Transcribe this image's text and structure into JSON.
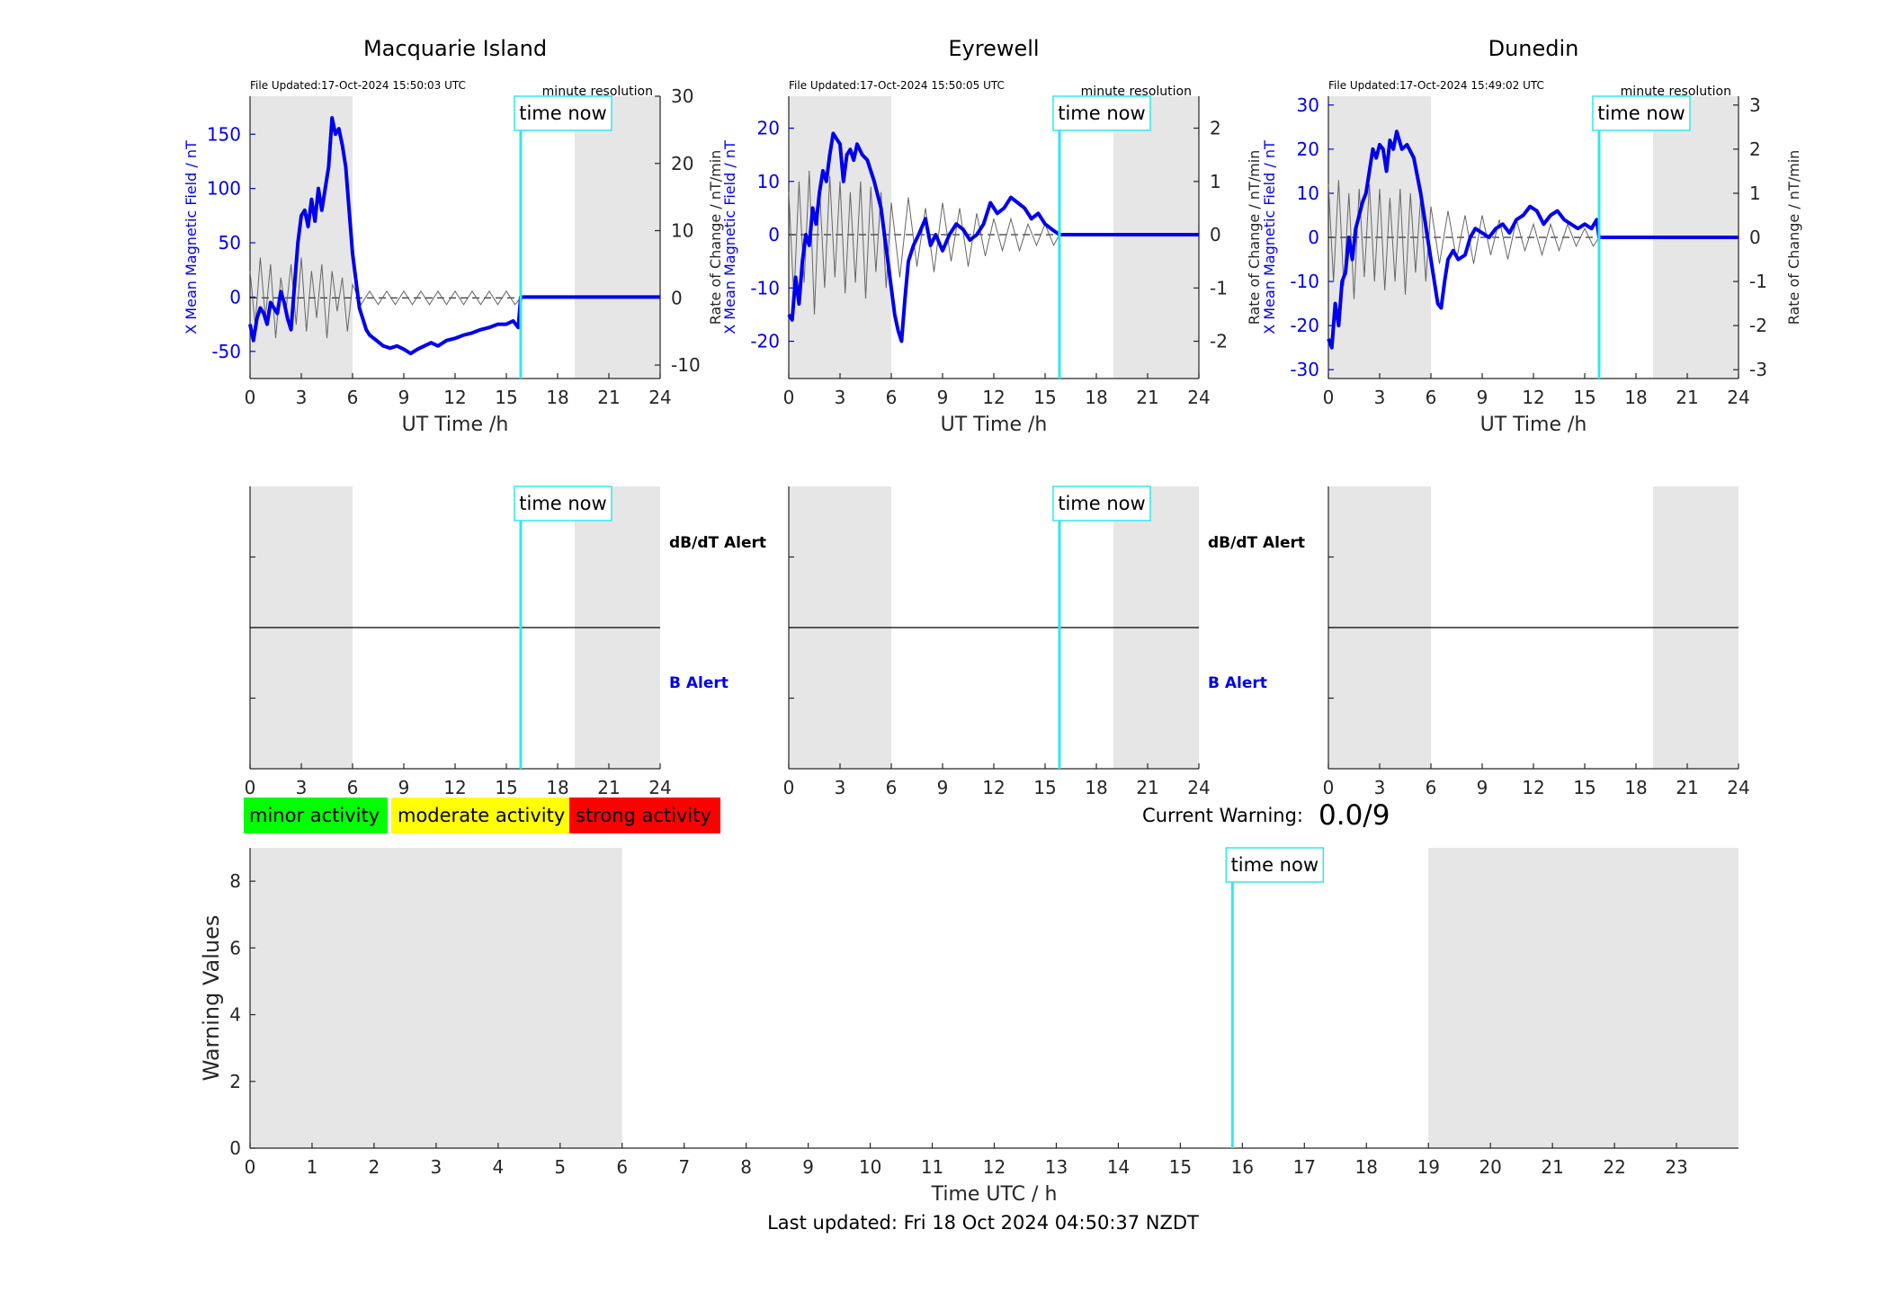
{
  "figure": {
    "last_updated": "Last updated: Fri 18 Oct 2024 04:50:37 NZDT",
    "current_warning_label": "Current Warning:",
    "current_warning_value": "0.0/9",
    "time_now_label": "time now",
    "time_now_hour": 15.84,
    "shaded_ranges_h": [
      [
        0,
        6
      ],
      [
        19,
        24
      ]
    ],
    "colors": {
      "mean_field": "#0000ee",
      "rate_of_change": "#666666",
      "time_now_line": "#33e6ee",
      "shade": "#e6e6e6",
      "minor": "#00ff00",
      "moderate": "#ffff00",
      "strong": "#ff0000"
    },
    "activity_legend": [
      {
        "label": "minor activity",
        "color": "#00ff00"
      },
      {
        "label": "moderate activity",
        "color": "#ffff00"
      },
      {
        "label": "strong activity",
        "color": "#ff0000"
      }
    ]
  },
  "chart_data": [
    {
      "type": "line",
      "title": "Macquarie Island",
      "file_updated": "File Updated:17-Oct-2024 15:50:03 UTC",
      "resolution": "minute resolution",
      "xlabel": "UT Time /h",
      "ylabel": "X Mean Magnetic Field / nT",
      "ylabel_right": "Rate of Change / nT/min",
      "xlim": [
        0,
        24
      ],
      "xticks": [
        0,
        3,
        6,
        9,
        12,
        15,
        18,
        21,
        24
      ],
      "ylim": [
        -75,
        185
      ],
      "yticks": [
        -50,
        0,
        50,
        100,
        150
      ],
      "ylim_right": [
        -12,
        30
      ],
      "yticks_right": [
        -10,
        0,
        10,
        20,
        30
      ],
      "grid": false,
      "series": [
        {
          "name": "X Mean Magnetic Field / nT",
          "axis": "left",
          "x": [
            0,
            0.2,
            0.4,
            0.6,
            0.8,
            1.0,
            1.2,
            1.4,
            1.6,
            1.8,
            2.0,
            2.2,
            2.4,
            2.6,
            2.8,
            3.0,
            3.2,
            3.4,
            3.6,
            3.8,
            4.0,
            4.2,
            4.4,
            4.6,
            4.8,
            5.0,
            5.2,
            5.4,
            5.6,
            5.8,
            6.0,
            6.2,
            6.4,
            6.6,
            6.8,
            7.0,
            7.4,
            7.8,
            8.2,
            8.6,
            9.0,
            9.4,
            9.8,
            10.2,
            10.6,
            11.0,
            11.5,
            12.0,
            12.5,
            13.0,
            13.5,
            14.0,
            14.5,
            15.0,
            15.4,
            15.7,
            15.84,
            24
          ],
          "values": [
            -25,
            -40,
            -20,
            -10,
            -15,
            -25,
            -5,
            -10,
            -15,
            5,
            -5,
            -20,
            -30,
            10,
            50,
            75,
            80,
            65,
            90,
            70,
            100,
            80,
            100,
            120,
            165,
            150,
            155,
            140,
            120,
            80,
            40,
            15,
            -10,
            -20,
            -30,
            -35,
            -40,
            -45,
            -47,
            -45,
            -48,
            -52,
            -48,
            -45,
            -42,
            -45,
            -40,
            -38,
            -35,
            -33,
            -30,
            -28,
            -25,
            -25,
            -22,
            -28,
            0,
            0
          ]
        },
        {
          "name": "Rate of Change / nT/min",
          "axis": "right",
          "x": [
            0,
            0.3,
            0.6,
            0.9,
            1.2,
            1.5,
            1.8,
            2.1,
            2.4,
            2.7,
            3.0,
            3.3,
            3.6,
            3.9,
            4.2,
            4.5,
            4.8,
            5.1,
            5.4,
            5.7,
            6.0,
            6.5,
            7.0,
            7.5,
            8.0,
            8.5,
            9.0,
            9.5,
            10.0,
            10.5,
            11.0,
            11.5,
            12.0,
            12.5,
            13.0,
            13.5,
            14.0,
            14.5,
            15.0,
            15.5,
            15.84
          ],
          "values": [
            4,
            -4,
            6,
            -3,
            5,
            -6,
            3,
            -2,
            5,
            -4,
            6,
            -5,
            4,
            -3,
            5,
            -6,
            4,
            -2,
            3,
            -5,
            2,
            -1,
            1,
            -1,
            1,
            -1,
            1,
            -1,
            1,
            -1,
            1,
            -1,
            1,
            -1,
            1,
            -1,
            1,
            -1,
            1,
            -1,
            0
          ]
        }
      ]
    },
    {
      "type": "line",
      "title": "Eyrewell",
      "file_updated": "File Updated:17-Oct-2024 15:50:05 UTC",
      "resolution": "minute resolution",
      "xlabel": "UT Time /h",
      "ylabel": "X Mean Magnetic Field / nT",
      "ylabel_right": "Rate of Change / nT/min",
      "xlim": [
        0,
        24
      ],
      "xticks": [
        0,
        3,
        6,
        9,
        12,
        15,
        18,
        21,
        24
      ],
      "ylim": [
        -27,
        26
      ],
      "yticks": [
        -20,
        -10,
        0,
        10,
        20
      ],
      "ylim_right": [
        -2.7,
        2.6
      ],
      "yticks_right": [
        -2,
        -1,
        0,
        1,
        2
      ],
      "grid": false,
      "series": [
        {
          "name": "X Mean Magnetic Field / nT",
          "axis": "left",
          "x": [
            0,
            0.2,
            0.4,
            0.6,
            0.8,
            1.0,
            1.2,
            1.4,
            1.6,
            1.8,
            2.0,
            2.2,
            2.4,
            2.6,
            2.8,
            3.0,
            3.2,
            3.4,
            3.6,
            3.8,
            4.0,
            4.3,
            4.6,
            5.0,
            5.4,
            5.8,
            6.0,
            6.2,
            6.4,
            6.6,
            6.8,
            7.0,
            7.3,
            7.6,
            8.0,
            8.3,
            8.6,
            9.0,
            9.4,
            9.8,
            10.2,
            10.6,
            11.0,
            11.4,
            11.8,
            12.2,
            12.6,
            13.0,
            13.4,
            13.8,
            14.2,
            14.6,
            15.0,
            15.4,
            15.84,
            24
          ],
          "values": [
            -15,
            -16,
            -8,
            -13,
            -5,
            0,
            -2,
            5,
            2,
            8,
            12,
            10,
            15,
            19,
            18,
            17,
            10,
            15,
            16,
            14,
            17,
            15,
            14,
            10,
            5,
            -5,
            -10,
            -15,
            -18,
            -20,
            -12,
            -5,
            -2,
            0,
            3,
            -2,
            0,
            -3,
            0,
            2,
            1,
            -1,
            0,
            2,
            6,
            4,
            5,
            7,
            6,
            5,
            3,
            4,
            2,
            1,
            0,
            0
          ]
        },
        {
          "name": "Rate of Change / nT/min",
          "axis": "right",
          "x": [
            0,
            0.3,
            0.6,
            0.9,
            1.2,
            1.5,
            1.8,
            2.1,
            2.4,
            2.7,
            3.0,
            3.3,
            3.6,
            3.9,
            4.2,
            4.5,
            4.8,
            5.1,
            5.4,
            5.7,
            6.0,
            6.5,
            7.0,
            7.5,
            8.0,
            8.5,
            9.0,
            9.5,
            10.0,
            10.5,
            11.0,
            11.5,
            12.0,
            12.5,
            13.0,
            13.5,
            14.0,
            14.5,
            15.0,
            15.5,
            15.84
          ],
          "values": [
            0.8,
            -1.2,
            1.0,
            -0.9,
            1.2,
            -1.5,
            0.9,
            -1.0,
            1.1,
            -0.8,
            1.0,
            -1.1,
            0.8,
            -0.9,
            1.0,
            -1.2,
            0.9,
            -0.7,
            0.8,
            -1.0,
            0.6,
            -0.8,
            0.7,
            -0.6,
            0.5,
            -0.7,
            0.6,
            -0.5,
            0.5,
            -0.6,
            0.4,
            -0.4,
            0.3,
            -0.3,
            0.3,
            -0.3,
            0.2,
            -0.2,
            0.2,
            -0.2,
            0
          ]
        }
      ]
    },
    {
      "type": "line",
      "title": "Dunedin",
      "file_updated": "File Updated:17-Oct-2024 15:49:02 UTC",
      "resolution": "minute resolution",
      "xlabel": "UT Time /h",
      "ylabel": "X Mean Magnetic Field / nT",
      "ylabel_right": "Rate of Change / nT/min",
      "xlim": [
        0,
        24
      ],
      "xticks": [
        0,
        3,
        6,
        9,
        12,
        15,
        18,
        21,
        24
      ],
      "ylim": [
        -32,
        32
      ],
      "yticks": [
        -30,
        -20,
        -10,
        0,
        10,
        20,
        30
      ],
      "ylim_right": [
        -3.2,
        3.2
      ],
      "yticks_right": [
        -3,
        -2,
        -1,
        0,
        1,
        2,
        3
      ],
      "grid": false,
      "series": [
        {
          "name": "X Mean Magnetic Field / nT",
          "axis": "left",
          "x": [
            0,
            0.2,
            0.4,
            0.6,
            0.8,
            1.0,
            1.2,
            1.4,
            1.6,
            1.8,
            2.0,
            2.2,
            2.4,
            2.6,
            2.8,
            3.0,
            3.2,
            3.4,
            3.6,
            3.8,
            4.0,
            4.3,
            4.6,
            5.0,
            5.4,
            5.8,
            6.0,
            6.2,
            6.4,
            6.6,
            6.8,
            7.0,
            7.3,
            7.6,
            8.0,
            8.3,
            8.6,
            9.0,
            9.4,
            9.8,
            10.2,
            10.6,
            11.0,
            11.4,
            11.8,
            12.2,
            12.6,
            13.0,
            13.4,
            13.8,
            14.2,
            14.6,
            15.0,
            15.4,
            15.7,
            15.84,
            24
          ],
          "values": [
            -23,
            -25,
            -15,
            -20,
            -10,
            -8,
            0,
            -5,
            2,
            5,
            8,
            10,
            15,
            20,
            18,
            21,
            20,
            15,
            22,
            20,
            24,
            20,
            21,
            18,
            10,
            0,
            -5,
            -10,
            -15,
            -16,
            -10,
            -5,
            -3,
            -5,
            -4,
            0,
            2,
            1,
            0,
            2,
            3,
            1,
            4,
            5,
            7,
            6,
            3,
            5,
            6,
            4,
            3,
            2,
            3,
            2,
            4,
            0,
            0
          ]
        },
        {
          "name": "Rate of Change / nT/min",
          "axis": "right",
          "x": [
            0,
            0.3,
            0.6,
            0.9,
            1.2,
            1.5,
            1.8,
            2.1,
            2.4,
            2.7,
            3.0,
            3.3,
            3.6,
            3.9,
            4.2,
            4.5,
            4.8,
            5.1,
            5.4,
            5.7,
            6.0,
            6.5,
            7.0,
            7.5,
            8.0,
            8.5,
            9.0,
            9.5,
            10.0,
            10.5,
            11.0,
            11.5,
            12.0,
            12.5,
            13.0,
            13.5,
            14.0,
            14.5,
            15.0,
            15.5,
            15.84
          ],
          "values": [
            1.2,
            -1.0,
            1.3,
            -1.1,
            1.0,
            -1.4,
            1.1,
            -0.9,
            1.2,
            -1.0,
            1.1,
            -1.2,
            0.9,
            -1.0,
            1.1,
            -1.3,
            1.0,
            -0.8,
            0.9,
            -1.0,
            0.7,
            -0.6,
            0.6,
            -0.5,
            0.5,
            -0.6,
            0.5,
            -0.4,
            0.4,
            -0.5,
            0.4,
            -0.3,
            0.3,
            -0.4,
            0.3,
            -0.3,
            0.3,
            -0.2,
            0.2,
            -0.2,
            0
          ]
        }
      ]
    },
    {
      "type": "line",
      "title": "",
      "alert_labels": [
        "dB/dT Alert",
        "B Alert"
      ],
      "xlim": [
        0,
        24
      ],
      "xticks": [
        0,
        3,
        6,
        9,
        12,
        15,
        18,
        21,
        24
      ],
      "grid": false,
      "series": []
    },
    {
      "type": "line",
      "title": "",
      "alert_labels": [
        "dB/dT Alert",
        "B Alert"
      ],
      "xlim": [
        0,
        24
      ],
      "xticks": [
        0,
        3,
        6,
        9,
        12,
        15,
        18,
        21,
        24
      ],
      "grid": false,
      "series": []
    },
    {
      "type": "line",
      "title": "",
      "alert_labels": [],
      "xlim": [
        0,
        24
      ],
      "xticks": [
        0,
        3,
        6,
        9,
        12,
        15,
        18,
        21,
        24
      ],
      "grid": false,
      "series": []
    },
    {
      "type": "line",
      "title": "",
      "xlabel": "Time UTC / h",
      "ylabel": "Warning Values",
      "xlim": [
        0,
        24
      ],
      "xticks": [
        0,
        1,
        2,
        3,
        4,
        5,
        6,
        7,
        8,
        9,
        10,
        11,
        12,
        13,
        14,
        15,
        16,
        17,
        18,
        19,
        20,
        21,
        22,
        23
      ],
      "ylim": [
        0,
        9
      ],
      "yticks": [
        0,
        2,
        4,
        6,
        8
      ],
      "grid": false,
      "series": []
    }
  ]
}
